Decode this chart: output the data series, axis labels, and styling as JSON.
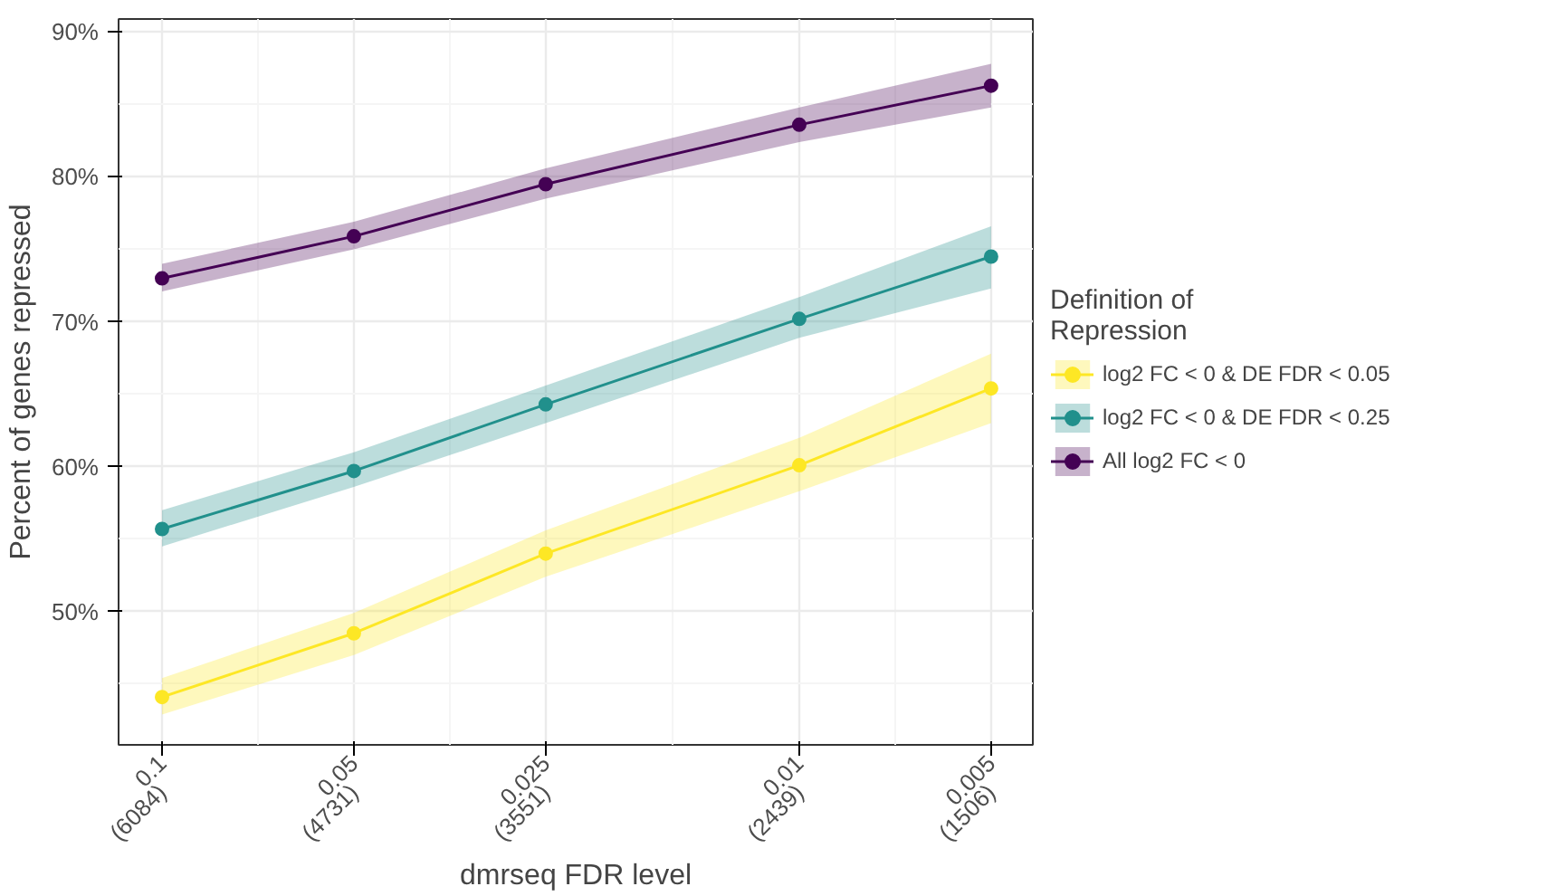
{
  "chart_data": {
    "type": "line",
    "xlabel": "dmrseq FDR level",
    "ylabel": "Percent of genes repressed",
    "legend_title": "Definition of\nRepression",
    "x": [
      0.1,
      0.05,
      0.025,
      0.01,
      0.005
    ],
    "series": [
      {
        "name": "log2 FC < 0 & DE FDR < 0.05",
        "color": "#fde725",
        "values": [
          44.1,
          48.5,
          54.0,
          60.1,
          65.4
        ],
        "lower": [
          42.9,
          47.0,
          52.4,
          58.3,
          63.0
        ],
        "upper": [
          45.4,
          49.9,
          55.6,
          62.0,
          67.8
        ]
      },
      {
        "name": "log2 FC < 0 & DE FDR < 0.25",
        "color": "#21908c",
        "values": [
          55.7,
          59.7,
          64.3,
          70.2,
          74.5
        ],
        "lower": [
          54.5,
          58.6,
          63.0,
          68.9,
          72.3
        ],
        "upper": [
          57.0,
          61.0,
          65.6,
          71.7,
          76.6
        ]
      },
      {
        "name": "All log2 FC < 0",
        "color": "#440154",
        "values": [
          73.0,
          75.9,
          79.5,
          83.6,
          86.3
        ],
        "lower": [
          72.1,
          75.0,
          78.5,
          82.4,
          84.8
        ],
        "upper": [
          74.0,
          76.9,
          80.6,
          84.8,
          87.8
        ]
      }
    ],
    "log": "x",
    "xlim": [
      0.117,
      0.0043
    ],
    "ylim": [
      40.8,
      90.9
    ],
    "xticks": [
      0.1,
      0.05,
      0.025,
      0.01,
      0.005
    ],
    "annotations": [
      "(6084)",
      "(4731)",
      "(3551)",
      "(2439)",
      "(1506)"
    ],
    "yticks": [
      {
        "value": 50,
        "label": "50%"
      },
      {
        "value": 60,
        "label": "60%"
      },
      {
        "value": 70,
        "label": "70%"
      },
      {
        "value": 80,
        "label": "80%"
      },
      {
        "value": 90,
        "label": "90%"
      }
    ],
    "grid": true,
    "legend": "right",
    "marker": "circle",
    "line_style": "solid"
  }
}
